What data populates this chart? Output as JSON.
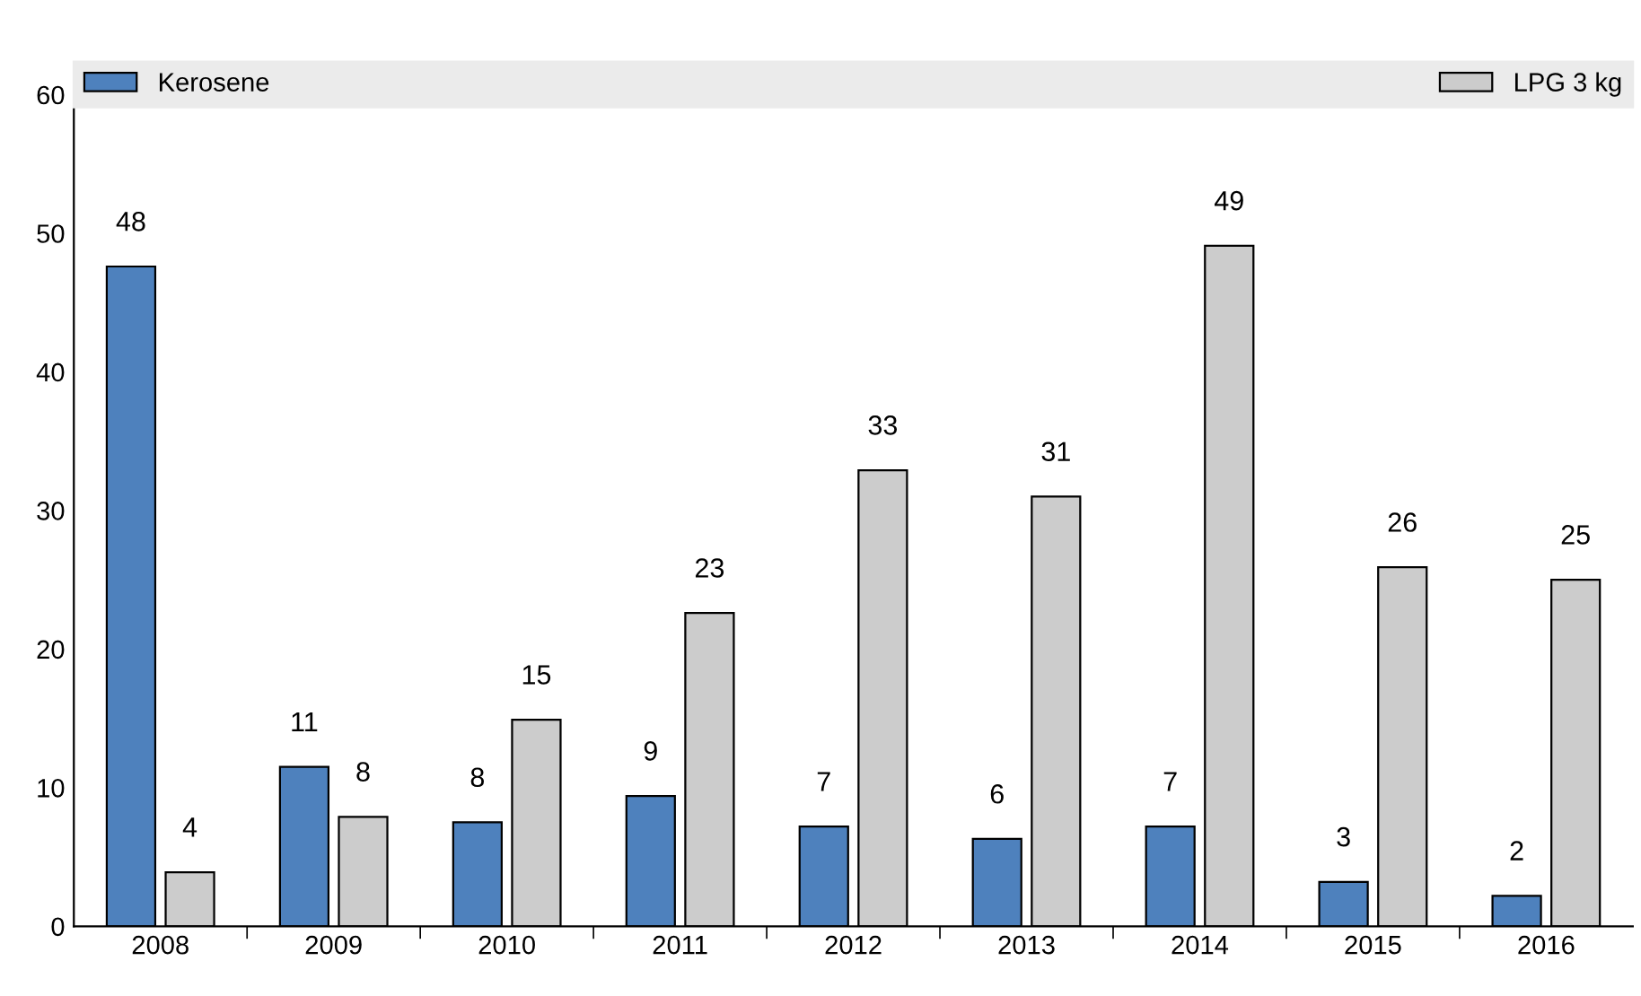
{
  "chart_data": {
    "type": "bar",
    "categories": [
      "2008",
      "2009",
      "2010",
      "2011",
      "2012",
      "2013",
      "2014",
      "2015",
      "2016"
    ],
    "series": [
      {
        "name": "Kerosene",
        "color": "#4e81bd",
        "values": [
          47.6,
          11.5,
          7.5,
          9.4,
          7.2,
          6.3,
          7.2,
          3.2,
          2.2
        ],
        "value_labels": [
          "48",
          "11",
          "8",
          "9",
          "7",
          "6",
          "7",
          "3",
          "2"
        ]
      },
      {
        "name": "LPG 3 kg",
        "color": "#cccccc",
        "values": [
          3.9,
          7.9,
          14.9,
          22.6,
          32.9,
          31.0,
          49.1,
          25.9,
          25.0
        ],
        "value_labels": [
          "4",
          "8",
          "15",
          "23",
          "33",
          "31",
          "49",
          "26",
          "25"
        ]
      }
    ],
    "ylim": [
      0,
      60
    ],
    "yticks": [
      0,
      10,
      20,
      30,
      40,
      50,
      60
    ],
    "grid": false,
    "legend": "top"
  }
}
